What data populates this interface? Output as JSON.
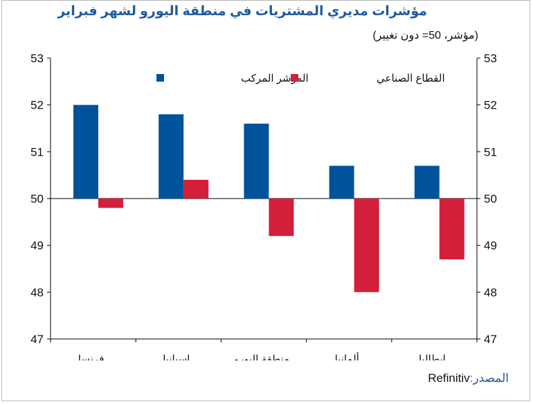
{
  "title": "مؤشرات مديري المشتريات في منطقة اليورو لشهر فبراير",
  "subtitle": "(مؤشر، 50= دون تغيير)",
  "source_label": "المصدر:",
  "source_value": "Refinitiv",
  "colors": {
    "composite": "#00539b",
    "manufacturing": "#d41f3a",
    "title": "#1f5a9e"
  },
  "chart_data": {
    "type": "bar",
    "categories": [
      "فرنسا",
      "اسبانيا",
      "منطقة اليورو",
      "ألمانيا",
      "إيطاليا"
    ],
    "series": [
      {
        "name": "المؤشر المركب",
        "values": [
          52.0,
          51.8,
          51.6,
          50.7,
          50.7
        ],
        "color": "#00539b"
      },
      {
        "name": "القطاع الصناعي",
        "values": [
          49.8,
          50.4,
          49.2,
          48.0,
          48.7
        ],
        "color": "#d41f3a"
      }
    ],
    "baseline": 50,
    "ylim": [
      47,
      53
    ],
    "yticks": [
      47,
      48,
      49,
      50,
      51,
      52,
      53
    ],
    "y_axis_both_sides": true,
    "legend_position": "top",
    "grid": false
  }
}
